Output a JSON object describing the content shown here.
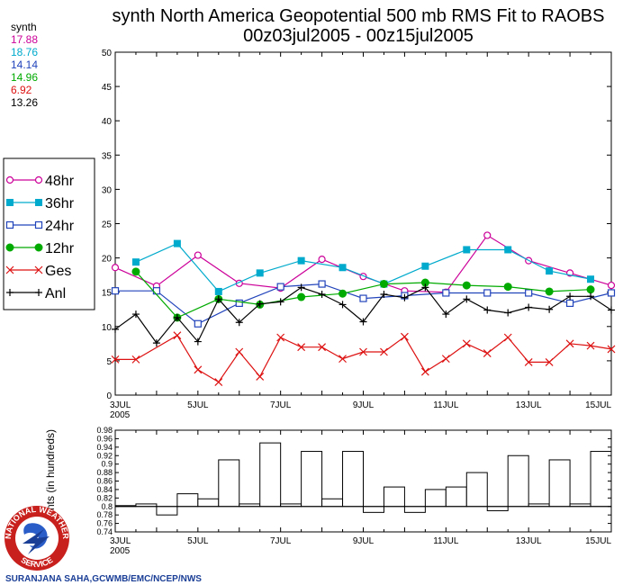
{
  "title": {
    "line1": "synth North America Geopotential 500 mb RMS Fit to RAOBS",
    "line2": "00z03jul2005 - 00z15jul2005"
  },
  "stats": {
    "header": "synth",
    "values": [
      {
        "text": "17.88",
        "color": "#cc0099"
      },
      {
        "text": "18.76",
        "color": "#00aacc"
      },
      {
        "text": "14.14",
        "color": "#2244bb"
      },
      {
        "text": "14.96",
        "color": "#00aa00"
      },
      {
        "text": "6.92",
        "color": "#dd1111"
      },
      {
        "text": "13.26",
        "color": "#000000"
      }
    ]
  },
  "credit": "SURANJANA SAHA,GCWMB/EMC/NCEP/NWS",
  "logo": {
    "top_text": "NATIONAL WEATHER",
    "bottom_text": "SERVICE"
  },
  "chart_data": [
    {
      "type": "line",
      "x_ticks": [
        {
          "d": 0,
          "label": "3JUL",
          "sub": "2005"
        },
        {
          "d": 2,
          "label": "5JUL"
        },
        {
          "d": 4,
          "label": "7JUL"
        },
        {
          "d": 6,
          "label": "9JUL"
        },
        {
          "d": 8,
          "label": "11JUL"
        },
        {
          "d": 10,
          "label": "13JUL"
        },
        {
          "d": 12,
          "label": "15JUL"
        }
      ],
      "xlim": [
        0,
        12
      ],
      "ylim": [
        0,
        50
      ],
      "y_ticks": [
        0,
        5,
        10,
        15,
        20,
        25,
        30,
        35,
        40,
        45,
        50
      ],
      "legend": {
        "placement": "left"
      },
      "series": [
        {
          "name": "48hr",
          "color": "#cc0099",
          "marker": "open-circle",
          "points": [
            [
              0,
              18.6
            ],
            [
              1,
              15.9
            ],
            [
              2,
              20.4
            ],
            [
              3,
              16.3
            ],
            [
              4,
              15.6
            ],
            [
              5,
              19.8
            ],
            [
              6,
              17.3
            ],
            [
              7,
              15.2
            ],
            [
              8,
              15.0
            ],
            [
              9,
              23.3
            ],
            [
              10,
              19.6
            ],
            [
              11,
              17.8
            ],
            [
              12,
              16.0
            ]
          ]
        },
        {
          "name": "36hr",
          "color": "#00aacc",
          "marker": "filled-square",
          "points": [
            [
              0.5,
              19.4
            ],
            [
              1.5,
              22.1
            ],
            [
              2.5,
              15.1
            ],
            [
              3.5,
              17.8
            ],
            [
              4.5,
              19.6
            ],
            [
              5.5,
              18.6
            ],
            [
              6.5,
              16.2
            ],
            [
              7.5,
              18.8
            ],
            [
              8.5,
              21.2
            ],
            [
              9.5,
              21.2
            ],
            [
              10.5,
              18.1
            ],
            [
              11.5,
              16.9
            ]
          ]
        },
        {
          "name": "24hr",
          "color": "#2244bb",
          "marker": "open-square",
          "points": [
            [
              0,
              15.2
            ],
            [
              1,
              15.2
            ],
            [
              2,
              10.4
            ],
            [
              3,
              13.4
            ],
            [
              4,
              15.8
            ],
            [
              5,
              16.2
            ],
            [
              6,
              14.1
            ],
            [
              7,
              14.5
            ],
            [
              8,
              14.9
            ],
            [
              9,
              14.9
            ],
            [
              10,
              14.9
            ],
            [
              11,
              13.4
            ],
            [
              12,
              14.9
            ]
          ]
        },
        {
          "name": "12hr",
          "color": "#00aa00",
          "marker": "filled-circle",
          "points": [
            [
              0.5,
              18.0
            ],
            [
              1.5,
              11.3
            ],
            [
              2.5,
              14.0
            ],
            [
              3.5,
              13.2
            ],
            [
              4.5,
              14.3
            ],
            [
              5.5,
              14.8
            ],
            [
              6.5,
              16.2
            ],
            [
              7.5,
              16.4
            ],
            [
              8.5,
              16.0
            ],
            [
              9.5,
              15.8
            ],
            [
              10.5,
              15.1
            ],
            [
              11.5,
              15.4
            ]
          ]
        },
        {
          "name": "Ges",
          "color": "#dd1111",
          "marker": "x",
          "points": [
            [
              0,
              5.2
            ],
            [
              0.5,
              5.2
            ],
            [
              1.5,
              8.7
            ],
            [
              2,
              3.7
            ],
            [
              2.5,
              1.9
            ],
            [
              3,
              6.3
            ],
            [
              3.5,
              2.7
            ],
            [
              4,
              8.4
            ],
            [
              4.5,
              7.0
            ],
            [
              5,
              7.0
            ],
            [
              5.5,
              5.3
            ],
            [
              6,
              6.3
            ],
            [
              6.5,
              6.3
            ],
            [
              7,
              8.5
            ],
            [
              7.5,
              3.4
            ],
            [
              8,
              5.3
            ],
            [
              8.5,
              7.5
            ],
            [
              9,
              6.1
            ],
            [
              9.5,
              8.4
            ],
            [
              10,
              4.8
            ],
            [
              10.5,
              4.8
            ],
            [
              11,
              7.5
            ],
            [
              11.5,
              7.2
            ],
            [
              12,
              6.7
            ]
          ]
        },
        {
          "name": "Anl",
          "color": "#000000",
          "marker": "plus",
          "points": [
            [
              0,
              9.6
            ],
            [
              0.5,
              11.8
            ],
            [
              1,
              7.6
            ],
            [
              1.5,
              11.3
            ],
            [
              2,
              7.8
            ],
            [
              2.5,
              14.0
            ],
            [
              3,
              10.6
            ],
            [
              3.5,
              13.3
            ],
            [
              4,
              13.6
            ],
            [
              4.5,
              15.7
            ],
            [
              5,
              14.7
            ],
            [
              5.5,
              13.2
            ],
            [
              6,
              10.7
            ],
            [
              6.5,
              14.7
            ],
            [
              7,
              14.2
            ],
            [
              7.5,
              15.7
            ],
            [
              8,
              11.8
            ],
            [
              8.5,
              14.0
            ],
            [
              9,
              12.4
            ],
            [
              9.5,
              12.0
            ],
            [
              10,
              12.8
            ],
            [
              10.5,
              12.5
            ],
            [
              11,
              14.4
            ],
            [
              11.5,
              14.4
            ],
            [
              12,
              12.4
            ]
          ]
        }
      ]
    },
    {
      "type": "bar",
      "ylabel": "Counts (in hundreds)",
      "ylim": [
        0.74,
        0.98
      ],
      "baseline": 0.8,
      "y_ticks": [
        "0.74",
        "0.76",
        "0.78",
        "0.8",
        "0.82",
        "0.84",
        "0.86",
        "0.88",
        "0.9",
        "0.92",
        "0.94",
        "0.96",
        "0.98"
      ],
      "x_ticks": [
        {
          "d": 0,
          "label": "3JUL",
          "sub": "2005"
        },
        {
          "d": 2,
          "label": "5JUL"
        },
        {
          "d": 4,
          "label": "7JUL"
        },
        {
          "d": 6,
          "label": "9JUL"
        },
        {
          "d": 8,
          "label": "11JUL"
        },
        {
          "d": 10,
          "label": "13JUL"
        },
        {
          "d": 12,
          "label": "15JUL"
        }
      ],
      "xlim": [
        0,
        12
      ],
      "bin_width": 0.5,
      "values": [
        0.802,
        0.806,
        0.78,
        0.83,
        0.818,
        0.91,
        0.806,
        0.95,
        0.806,
        0.93,
        0.818,
        0.93,
        0.786,
        0.846,
        0.786,
        0.84,
        0.846,
        0.88,
        0.79,
        0.92,
        0.806,
        0.91,
        0.806,
        0.93
      ]
    }
  ]
}
